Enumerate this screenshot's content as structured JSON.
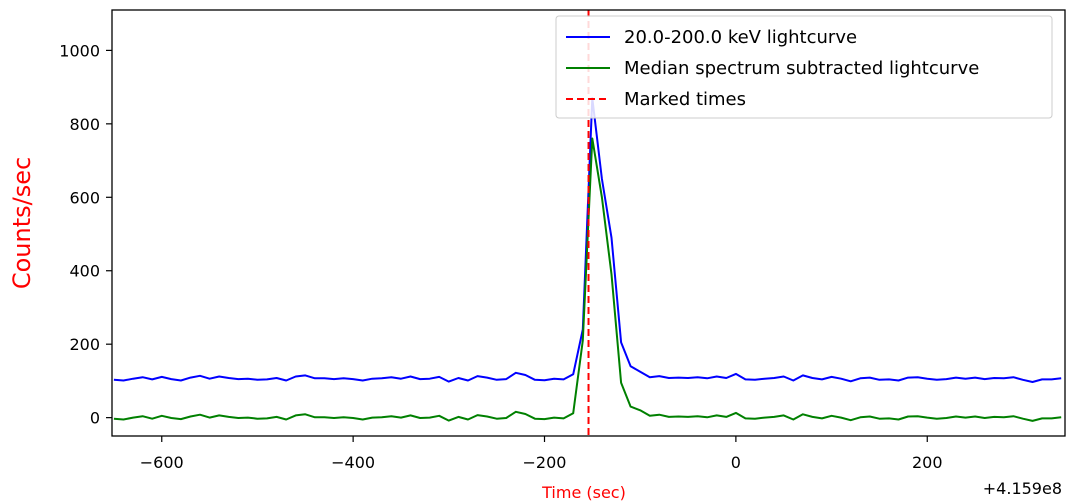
{
  "chart_data": {
    "type": "line",
    "title": "",
    "xlabel": "Time (sec)",
    "ylabel": "Counts/sec",
    "label_color": "#ff0000",
    "x_offset_text": "+4.159e8",
    "xlim": [
      -652,
      345
    ],
    "ylim": [
      -50,
      1110
    ],
    "x_ticks": [
      -600,
      -400,
      -200,
      0,
      200
    ],
    "x_tick_labels": [
      "−600",
      "−400",
      "−200",
      "0",
      "200"
    ],
    "y_ticks": [
      0,
      200,
      400,
      600,
      800,
      1000
    ],
    "y_tick_labels": [
      "0",
      "200",
      "400",
      "600",
      "800",
      "1000"
    ],
    "grid": false,
    "legend_position": "top-right",
    "marked_times": [
      -154
    ],
    "marked_label": "Marked times",
    "marked_color": "#ff0000",
    "series": [
      {
        "name": "20.0-200.0 keV lightcurve",
        "color": "#0000ff",
        "x": [
          -650,
          -640,
          -630,
          -620,
          -610,
          -600,
          -590,
          -580,
          -570,
          -560,
          -550,
          -540,
          -530,
          -520,
          -510,
          -500,
          -490,
          -480,
          -470,
          -460,
          -450,
          -440,
          -430,
          -420,
          -410,
          -400,
          -390,
          -380,
          -370,
          -360,
          -350,
          -340,
          -330,
          -320,
          -310,
          -300,
          -290,
          -280,
          -270,
          -260,
          -250,
          -240,
          -230,
          -220,
          -210,
          -200,
          -190,
          -180,
          -170,
          -160,
          -150,
          -140,
          -130,
          -120,
          -110,
          -100,
          -90,
          -80,
          -70,
          -60,
          -50,
          -40,
          -30,
          -20,
          -10,
          0,
          10,
          20,
          30,
          40,
          50,
          60,
          70,
          80,
          90,
          100,
          110,
          120,
          130,
          140,
          150,
          160,
          170,
          180,
          190,
          200,
          210,
          220,
          230,
          240,
          250,
          260,
          270,
          280,
          290,
          300,
          310,
          320,
          330,
          340
        ],
        "values": [
          103,
          101,
          106,
          110,
          104,
          111,
          105,
          101,
          109,
          114,
          106,
          112,
          108,
          105,
          106,
          103,
          104,
          108,
          101,
          112,
          115,
          107,
          107,
          105,
          107,
          105,
          101,
          106,
          107,
          110,
          106,
          112,
          105,
          106,
          111,
          98,
          108,
          101,
          113,
          109,
          103,
          105,
          122,
          116,
          103,
          102,
          106,
          104,
          118,
          240,
          870,
          650,
          490,
          205,
          140,
          125,
          110,
          113,
          108,
          109,
          108,
          110,
          107,
          112,
          108,
          119,
          104,
          103,
          106,
          108,
          112,
          101,
          115,
          108,
          104,
          111,
          106,
          99,
          107,
          109,
          103,
          104,
          101,
          109,
          110,
          106,
          103,
          105,
          109,
          106,
          109,
          105,
          108,
          107,
          110,
          103,
          97,
          104,
          104,
          107
        ]
      },
      {
        "name": "Median spectrum subtracted lightcurve",
        "color": "#008000",
        "x": [
          -650,
          -640,
          -630,
          -620,
          -610,
          -600,
          -590,
          -580,
          -570,
          -560,
          -550,
          -540,
          -530,
          -520,
          -510,
          -500,
          -490,
          -480,
          -470,
          -460,
          -450,
          -440,
          -430,
          -420,
          -410,
          -400,
          -390,
          -380,
          -370,
          -360,
          -350,
          -340,
          -330,
          -320,
          -310,
          -300,
          -290,
          -280,
          -270,
          -260,
          -250,
          -240,
          -230,
          -220,
          -210,
          -200,
          -190,
          -180,
          -170,
          -160,
          -150,
          -140,
          -130,
          -120,
          -110,
          -100,
          -90,
          -80,
          -70,
          -60,
          -50,
          -40,
          -30,
          -20,
          -10,
          0,
          10,
          20,
          30,
          40,
          50,
          60,
          70,
          80,
          90,
          100,
          110,
          120,
          130,
          140,
          150,
          160,
          170,
          180,
          190,
          200,
          210,
          220,
          230,
          240,
          250,
          260,
          270,
          280,
          290,
          300,
          310,
          320,
          330,
          340
        ],
        "values": [
          -3,
          -5,
          0,
          4,
          -3,
          5,
          -1,
          -4,
          3,
          8,
          0,
          6,
          2,
          -1,
          0,
          -3,
          -2,
          2,
          -5,
          6,
          9,
          1,
          1,
          -1,
          1,
          -1,
          -5,
          0,
          1,
          4,
          0,
          6,
          -1,
          0,
          5,
          -8,
          2,
          -5,
          7,
          3,
          -3,
          -1,
          16,
          10,
          -3,
          -4,
          0,
          -2,
          12,
          210,
          760,
          600,
          390,
          95,
          30,
          20,
          5,
          8,
          2,
          3,
          2,
          4,
          1,
          6,
          2,
          13,
          -2,
          -3,
          0,
          2,
          6,
          -5,
          9,
          2,
          -2,
          5,
          0,
          -7,
          1,
          3,
          -3,
          -2,
          -5,
          3,
          4,
          0,
          -3,
          -1,
          3,
          0,
          3,
          -1,
          2,
          1,
          4,
          -3,
          -9,
          -2,
          -2,
          1
        ]
      }
    ]
  }
}
